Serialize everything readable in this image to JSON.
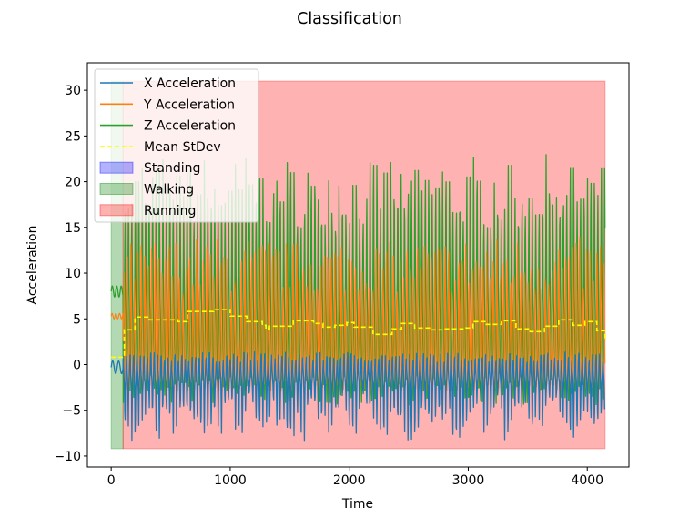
{
  "chart_data": {
    "type": "line",
    "title": "Classification",
    "xlabel": "Time",
    "ylabel": "Acceleration",
    "xlim": [
      -200,
      4350
    ],
    "ylim": [
      -11.2,
      33
    ],
    "xticks": [
      0,
      1000,
      2000,
      3000,
      4000
    ],
    "yticks": [
      -10,
      -5,
      0,
      5,
      10,
      15,
      20,
      25,
      30
    ],
    "xtick_labels": [
      "0",
      "1000",
      "2000",
      "3000",
      "4000"
    ],
    "ytick_labels": [
      "−10",
      "−5",
      "0",
      "5",
      "10",
      "15",
      "20",
      "25",
      "30"
    ],
    "grid": false,
    "legend_position": "upper-left",
    "colors": {
      "x": "#1f77b4",
      "y": "#ff7f0e",
      "z": "#2ca02c",
      "mean": "#ffff00",
      "standing": "#0000ff",
      "walking": "#008000",
      "running": "#ff0000"
    },
    "regions": [
      {
        "label": "Walking",
        "x_start": 0,
        "x_end": 100,
        "y_bottom": -9.2,
        "y_top": 31,
        "color": "#008000"
      },
      {
        "label": "Running",
        "x_start": 100,
        "x_end": 4150,
        "y_bottom": -9.2,
        "y_top": 31,
        "color": "#ff0000"
      }
    ],
    "x_range": [
      0,
      4150
    ],
    "series": [
      {
        "name": "X Acceleration",
        "color": "#1f77b4",
        "min": -9.2,
        "max": 1.5,
        "start_value": -0.3
      },
      {
        "name": "Y Acceleration",
        "color": "#ff7f0e",
        "min": -3,
        "max": 16,
        "start_value": 5.3
      },
      {
        "name": "Z Acceleration",
        "color": "#2ca02c",
        "min": -5,
        "max": 28,
        "start_value": 8
      },
      {
        "name": "Mean StDev",
        "color": "#ffff00",
        "style": "dashed",
        "x": [
          0,
          100,
          110,
          200,
          320,
          560,
          640,
          860,
          1000,
          1140,
          1270,
          1300,
          1330,
          1530,
          1700,
          1780,
          1880,
          1980,
          2040,
          2200,
          2360,
          2440,
          2550,
          2680,
          2800,
          2980,
          3040,
          3140,
          3280,
          3400,
          3520,
          3640,
          3760,
          3880,
          3980,
          4080,
          4150
        ],
        "y": [
          0.8,
          0.8,
          3.8,
          5.2,
          4.9,
          4.7,
          5.8,
          6.0,
          5.3,
          4.7,
          4.3,
          3.9,
          4.2,
          4.8,
          4.5,
          4.1,
          4.3,
          4.6,
          4.1,
          3.3,
          3.9,
          4.5,
          4.0,
          3.8,
          3.9,
          4.0,
          4.7,
          4.4,
          4.8,
          3.9,
          3.6,
          4.2,
          4.9,
          4.3,
          4.7,
          3.7,
          2.8
        ]
      }
    ],
    "legend": [
      {
        "label": "X Acceleration",
        "kind": "line",
        "color": "#1f77b4"
      },
      {
        "label": "Y Acceleration",
        "kind": "line",
        "color": "#ff7f0e"
      },
      {
        "label": "Z Acceleration",
        "kind": "line",
        "color": "#2ca02c"
      },
      {
        "label": "Mean StDev",
        "kind": "dashed",
        "color": "#ffff00"
      },
      {
        "label": "Standing",
        "kind": "patch",
        "color": "#0000ff"
      },
      {
        "label": "Walking",
        "kind": "patch",
        "color": "#008000"
      },
      {
        "label": "Running",
        "kind": "patch",
        "color": "#ff0000"
      }
    ]
  }
}
